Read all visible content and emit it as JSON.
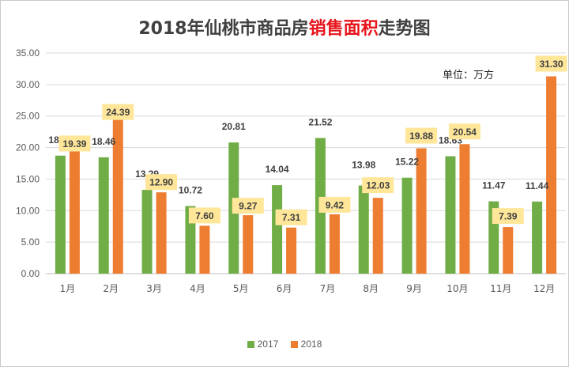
{
  "title_parts": {
    "pre": "2018年仙桃市商品房",
    "highlight": "销售面积",
    "post": "走势图"
  },
  "unit": "单位：万方",
  "colors": {
    "s2017": "#70ad47",
    "s2018": "#ed7d31",
    "label_box": "#ffe699",
    "grid": "#d9d9d9"
  },
  "chart_data": {
    "type": "bar",
    "title": "2018年仙桃市商品房销售面积走势图",
    "categories": [
      "1月",
      "2月",
      "3月",
      "4月",
      "5月",
      "6月",
      "7月",
      "8月",
      "9月",
      "10月",
      "11月",
      "12月"
    ],
    "series": [
      {
        "name": "2017",
        "values": [
          18.72,
          18.46,
          13.29,
          10.72,
          20.81,
          14.04,
          21.52,
          13.98,
          15.22,
          18.63,
          11.47,
          11.44
        ]
      },
      {
        "name": "2018",
        "values": [
          19.39,
          24.39,
          12.9,
          7.6,
          9.27,
          7.31,
          9.42,
          12.03,
          19.88,
          20.54,
          7.39,
          31.3
        ]
      }
    ],
    "ylim": [
      0,
      35
    ],
    "yticks": [
      "0.00",
      "5.00",
      "10.00",
      "15.00",
      "20.00",
      "25.00",
      "30.00",
      "35.00"
    ],
    "legend": [
      "2017",
      "2018"
    ],
    "legend_position": "bottom"
  }
}
